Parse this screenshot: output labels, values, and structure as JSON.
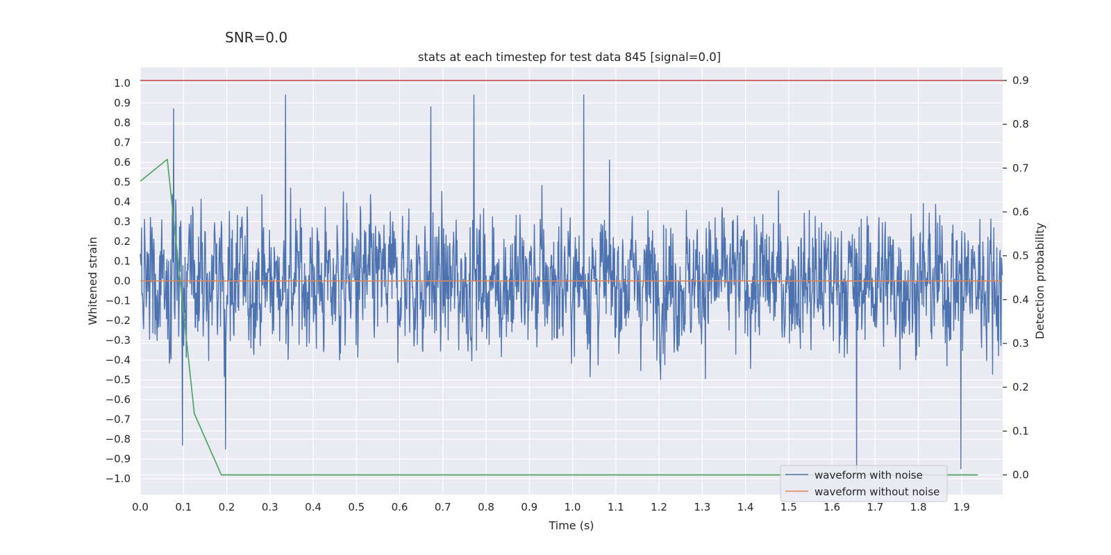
{
  "suptitle": "SNR=0.0",
  "chart_data": {
    "type": "line",
    "title": "stats at each timestep for test data 845 [signal=0.0]",
    "xlabel": "Time (s)",
    "ylabel": "Whitened strain",
    "y2label": "Detection probability",
    "xlim": [
      0.0,
      1.995
    ],
    "ylim": [
      -1.08,
      1.08
    ],
    "y2lim": [
      -0.045,
      0.93
    ],
    "x_ticks": [
      "0.0",
      "0.1",
      "0.2",
      "0.3",
      "0.4",
      "0.5",
      "0.6",
      "0.7",
      "0.8",
      "0.9",
      "1.0",
      "1.1",
      "1.2",
      "1.3",
      "1.4",
      "1.5",
      "1.6",
      "1.7",
      "1.8",
      "1.9"
    ],
    "y_ticks": [
      "1.0",
      "0.9",
      "0.8",
      "0.7",
      "0.6",
      "0.5",
      "0.4",
      "0.3",
      "0.2",
      "0.1",
      "0.0",
      "−0.1",
      "−0.2",
      "−0.3",
      "−0.4",
      "−0.5",
      "−0.6",
      "−0.7",
      "−0.8",
      "−0.9",
      "−1.0"
    ],
    "y2_ticks": [
      "0.9",
      "0.8",
      "0.7",
      "0.6",
      "0.5",
      "0.4",
      "0.3",
      "0.2",
      "0.1",
      "0.0"
    ],
    "grid": true,
    "legend_position": "lower-right",
    "series": [
      {
        "name": "waveform with noise",
        "axis": "left",
        "color": "#4c72b0",
        "noise": {
          "samples": 2048,
          "seed": 845,
          "amplitude_max": 0.95
        },
        "peaks": [
          {
            "x": 0.077,
            "y": 0.87
          },
          {
            "x": 0.336,
            "y": 0.94
          },
          {
            "x": 0.672,
            "y": 0.88
          },
          {
            "x": 0.772,
            "y": 0.94
          },
          {
            "x": 1.026,
            "y": 0.94
          },
          {
            "x": 1.657,
            "y": -0.96
          },
          {
            "x": 1.898,
            "y": -0.95
          },
          {
            "x": 0.098,
            "y": -0.83
          },
          {
            "x": 0.197,
            "y": -0.85
          }
        ]
      },
      {
        "name": "waveform without noise",
        "axis": "left",
        "color": "#dd8452",
        "x": [
          0.0,
          1.995
        ],
        "y": [
          0.0,
          0.0
        ]
      },
      {
        "name": "",
        "axis": "right",
        "color": "#55a868",
        "x": [
          0.0,
          0.0625,
          0.125,
          0.1875,
          0.25,
          1.9375
        ],
        "y": [
          0.67,
          0.72,
          0.14,
          0.0,
          0.0,
          0.0
        ]
      },
      {
        "name": "",
        "axis": "right",
        "color": "#c44e52",
        "x": [
          0.0,
          1.995
        ],
        "y": [
          0.9,
          0.9
        ]
      }
    ]
  }
}
